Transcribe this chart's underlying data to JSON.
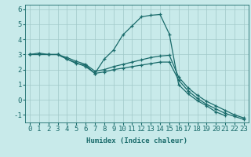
{
  "xlabel": "Humidex (Indice chaleur)",
  "bg_color": "#c8eaea",
  "line_color": "#1a6b6b",
  "grid_color": "#a0c8c8",
  "xlim": [
    -0.5,
    23.5
  ],
  "ylim": [
    -1.5,
    6.3
  ],
  "yticks": [
    -1,
    0,
    1,
    2,
    3,
    4,
    5,
    6
  ],
  "xticks": [
    0,
    1,
    2,
    3,
    4,
    5,
    6,
    7,
    8,
    9,
    10,
    11,
    12,
    13,
    14,
    15,
    16,
    17,
    18,
    19,
    20,
    21,
    22,
    23
  ],
  "series1_x": [
    0,
    1,
    2,
    3,
    4,
    5,
    6,
    7,
    8,
    9,
    10,
    11,
    12,
    13,
    14,
    15,
    16,
    17,
    18,
    19,
    20,
    21,
    22
  ],
  "series1_y": [
    3.0,
    3.1,
    3.0,
    3.0,
    2.7,
    2.4,
    2.3,
    1.75,
    2.7,
    3.3,
    4.3,
    4.9,
    5.5,
    5.6,
    5.65,
    4.35,
    1.0,
    0.4,
    -0.05,
    -0.4,
    -0.8,
    -1.05,
    null
  ],
  "series2_x": [
    0,
    1,
    2,
    3,
    4,
    5,
    6,
    7,
    8,
    9,
    10,
    11,
    12,
    13,
    14,
    15,
    16,
    17,
    18,
    19,
    20,
    21,
    22,
    23
  ],
  "series2_y": [
    3.0,
    3.0,
    3.0,
    3.0,
    2.8,
    2.55,
    2.35,
    1.9,
    2.0,
    2.2,
    2.35,
    2.5,
    2.65,
    2.8,
    2.9,
    2.95,
    1.5,
    0.8,
    0.3,
    -0.1,
    -0.4,
    -0.7,
    -1.0,
    -1.2
  ],
  "series3_x": [
    0,
    1,
    2,
    3,
    4,
    5,
    6,
    7,
    8,
    9,
    10,
    11,
    12,
    13,
    14,
    15,
    16,
    17,
    18,
    19,
    20,
    21,
    22,
    23
  ],
  "series3_y": [
    3.0,
    3.0,
    3.0,
    3.0,
    2.7,
    2.45,
    2.2,
    1.75,
    1.85,
    2.0,
    2.1,
    2.2,
    2.3,
    2.4,
    2.5,
    2.5,
    1.3,
    0.6,
    0.1,
    -0.3,
    -0.6,
    -0.9,
    -1.1,
    -1.3
  ],
  "font_size": 6.5,
  "marker_size": 2.5,
  "line_width": 0.9
}
